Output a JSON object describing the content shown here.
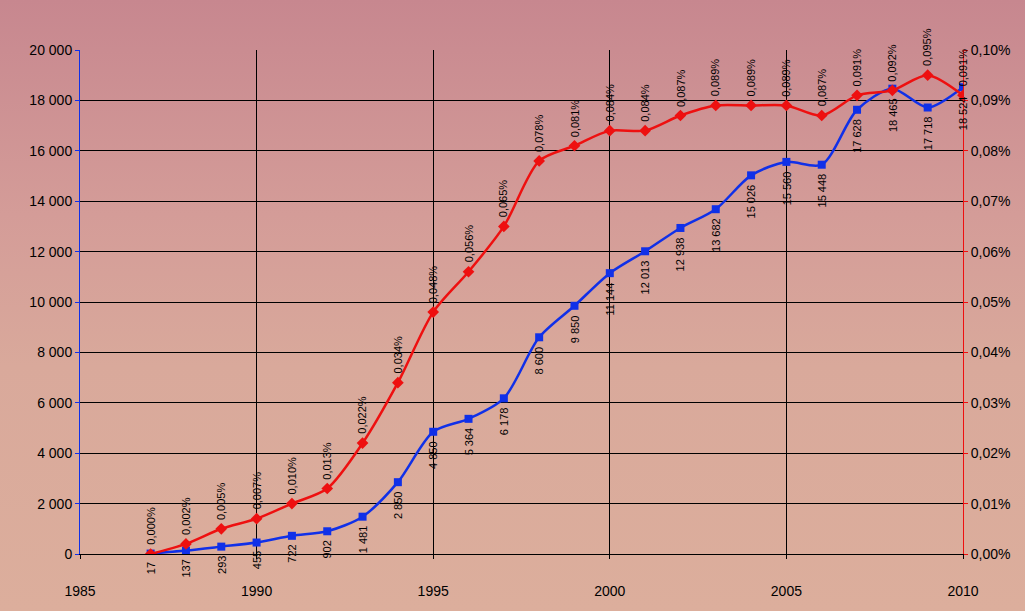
{
  "chart_data": {
    "type": "line",
    "x": [
      1987,
      1988,
      1989,
      1990,
      1991,
      1992,
      1993,
      1994,
      1995,
      1996,
      1997,
      1998,
      1999,
      2000,
      2001,
      2002,
      2003,
      2004,
      2005,
      2006,
      2007,
      2008,
      2009,
      2010
    ],
    "xlim": [
      1985,
      2010
    ],
    "xticks": [
      1985,
      1990,
      1995,
      2000,
      2005,
      2010
    ],
    "ylim": [
      0,
      20000
    ],
    "yticks": [
      0,
      {
        "value": 2000,
        "label": "2 000"
      },
      {
        "value": 4000,
        "label": "4 000"
      },
      {
        "value": 6000,
        "label": "6 000"
      },
      {
        "value": 8000,
        "label": "8 000"
      },
      {
        "value": 10000,
        "label": "10 000"
      },
      {
        "value": 12000,
        "label": "12 000"
      },
      {
        "value": 14000,
        "label": "14 000"
      },
      {
        "value": 16000,
        "label": "16 000"
      },
      {
        "value": 18000,
        "label": "18 000"
      },
      {
        "value": 20000,
        "label": "20 000"
      }
    ],
    "y2lim": [
      0,
      0.1
    ],
    "y2ticks": [
      {
        "value": 0,
        "label": "0,00%"
      },
      {
        "value": 0.01,
        "label": "0,01%"
      },
      {
        "value": 0.02,
        "label": "0,02%"
      },
      {
        "value": 0.03,
        "label": "0,03%"
      },
      {
        "value": 0.04,
        "label": "0,04%"
      },
      {
        "value": 0.05,
        "label": "0,05%"
      },
      {
        "value": 0.06,
        "label": "0,06%"
      },
      {
        "value": 0.07,
        "label": "0,07%"
      },
      {
        "value": 0.08,
        "label": "0,08%"
      },
      {
        "value": 0.09,
        "label": "0,09%"
      },
      {
        "value": 0.1,
        "label": "0,10%"
      }
    ],
    "grid": true,
    "data_labels": true,
    "series": [
      {
        "color": "#1030e8",
        "marker": "square",
        "line_style": "smooth",
        "values": [
          17,
          137,
          293,
          455,
          722,
          902,
          1481,
          2850,
          4850,
          5364,
          6178,
          8600,
          9850,
          11144,
          12013,
          12938,
          13682,
          15026,
          15560,
          15448,
          17628,
          18465,
          17718,
          18524
        ],
        "value_labels": [
          "17",
          "137",
          "293",
          "455",
          "722",
          "902",
          "1 481",
          "2 850",
          "4 850",
          "5 364",
          "6 178",
          "8 600",
          "9 850",
          "11 144",
          "12 013",
          "12 938",
          "13 682",
          "15 026",
          "15 560",
          "15 448",
          "17 628",
          "18 465",
          "17 718",
          "18 524"
        ]
      },
      {
        "axis": "y2",
        "color": "#ee1010",
        "marker": "diamond",
        "line_style": "smooth",
        "values": [
          0.0,
          0.002,
          0.005,
          0.007,
          0.01,
          0.013,
          0.022,
          0.034,
          0.048,
          0.056,
          0.065,
          0.078,
          0.081,
          0.084,
          0.084,
          0.087,
          0.089,
          0.089,
          0.089,
          0.087,
          0.091,
          0.092,
          0.095,
          0.091
        ],
        "value_labels": [
          "0,000%",
          "0,002%",
          "0,005%",
          "0,007%",
          "0,010%",
          "0,013%",
          "0,022%",
          "0,034%",
          "0,048%",
          "0,056%",
          "0,065%",
          "0,078%",
          "0,081%",
          "0,084%",
          "0,084%",
          "0,087%",
          "0,089%",
          "0,089%",
          "0,089%",
          "0,087%",
          "0,091%",
          "0,092%",
          "0,095%",
          "0,091%"
        ]
      }
    ]
  }
}
